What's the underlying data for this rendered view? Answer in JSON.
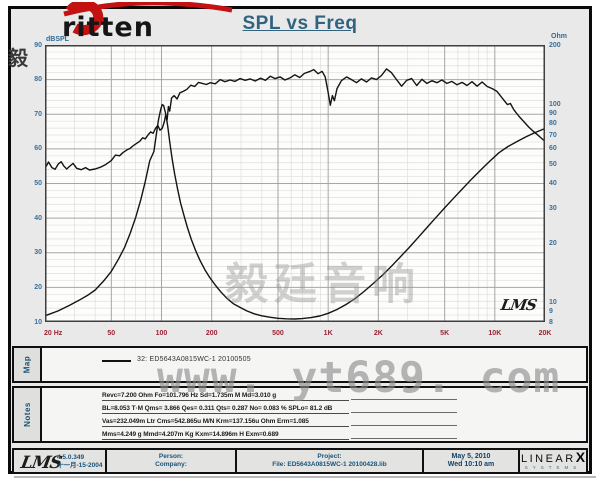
{
  "header": {
    "logo_text": "ritten",
    "stamp": "毅 廷 音 响",
    "title": "SPL vs Freq"
  },
  "colors": {
    "logo_red": "#c41111",
    "title_blue": "#31637f",
    "axis_teal": "#38709c",
    "axis_maroon": "#9b2235",
    "curve_black": "#141414",
    "watermark_gray": "#8c8c8c"
  },
  "chart_data": {
    "type": "line",
    "title": "SPL vs Freq",
    "grid": "on",
    "x_axis": {
      "scale": "log",
      "min": 20,
      "max": 20000,
      "ticks": [
        {
          "f": 20,
          "label": "20 Hz"
        },
        {
          "f": 50,
          "label": "50"
        },
        {
          "f": 100,
          "label": "100"
        },
        {
          "f": 200,
          "label": "200"
        },
        {
          "f": 500,
          "label": "500"
        },
        {
          "f": 1000,
          "label": "1K"
        },
        {
          "f": 2000,
          "label": "2K"
        },
        {
          "f": 5000,
          "label": "5K"
        },
        {
          "f": 10000,
          "label": "10K"
        },
        {
          "f": 20000,
          "label": "20K"
        }
      ],
      "minor": [
        30,
        40,
        60,
        70,
        80,
        90,
        300,
        400,
        600,
        700,
        800,
        900,
        3000,
        4000,
        6000,
        7000,
        8000,
        9000
      ],
      "major": [
        50,
        100,
        200,
        500,
        1000,
        2000,
        5000,
        10000
      ]
    },
    "y_left": {
      "label": "dBSPL",
      "scale": "linear",
      "min": 10,
      "max": 90,
      "ticks": [
        90,
        80,
        70,
        60,
        50,
        40,
        30,
        20,
        10
      ],
      "minor_step": 2
    },
    "y_right": {
      "label": "Ohm",
      "scale": "log",
      "min": 8,
      "max": 200,
      "ticks": [
        200,
        100,
        90,
        80,
        70,
        60,
        50,
        40,
        30,
        20,
        10,
        9,
        8
      ]
    },
    "watermark": "毅廷音响",
    "lms_signature": "LMS",
    "series": [
      {
        "name": "SPL (dB) - 32: ED5643A0815WC-1 20100505",
        "axis": "left",
        "points": [
          [
            20,
            54.3
          ],
          [
            21,
            56.2
          ],
          [
            22,
            54.6
          ],
          [
            23,
            54.1
          ],
          [
            24,
            55.6
          ],
          [
            25,
            56.3
          ],
          [
            26,
            55.0
          ],
          [
            27,
            54.2
          ],
          [
            28,
            54.9
          ],
          [
            29.5,
            55.8
          ],
          [
            31,
            54.4
          ],
          [
            33,
            54.0
          ],
          [
            35,
            54.6
          ],
          [
            37,
            53.9
          ],
          [
            40,
            54.2
          ],
          [
            43,
            54.7
          ],
          [
            46,
            55.4
          ],
          [
            50,
            56.6
          ],
          [
            53,
            58.2
          ],
          [
            56,
            58.0
          ],
          [
            59,
            59.0
          ],
          [
            62,
            59.7
          ],
          [
            65,
            60.2
          ],
          [
            68,
            61.0
          ],
          [
            71,
            61.6
          ],
          [
            74,
            62.2
          ],
          [
            77,
            63.2
          ],
          [
            80,
            62.9
          ],
          [
            83,
            64.0
          ],
          [
            86,
            64.9
          ],
          [
            89,
            64.5
          ],
          [
            92,
            65.9
          ],
          [
            95,
            66.8
          ],
          [
            98,
            65.4
          ],
          [
            101,
            65.9
          ],
          [
            104,
            67.8
          ],
          [
            106,
            69.8
          ],
          [
            108,
            68.3
          ],
          [
            110,
            72.2
          ],
          [
            112,
            70.9
          ],
          [
            115,
            74.7
          ],
          [
            119,
            75.4
          ],
          [
            124,
            74.4
          ],
          [
            129,
            76.2
          ],
          [
            135,
            76.6
          ],
          [
            142,
            77.2
          ],
          [
            150,
            78.4
          ],
          [
            158,
            78.0
          ],
          [
            167,
            79.2
          ],
          [
            176,
            78.9
          ],
          [
            186,
            78.6
          ],
          [
            196,
            79.1
          ],
          [
            210,
            78.8
          ],
          [
            225,
            80.0
          ],
          [
            240,
            79.4
          ],
          [
            258,
            79.9
          ],
          [
            276,
            79.5
          ],
          [
            296,
            80.3
          ],
          [
            318,
            79.8
          ],
          [
            340,
            80.2
          ],
          [
            365,
            79.6
          ],
          [
            392,
            80.4
          ],
          [
            420,
            79.8
          ],
          [
            450,
            81.0
          ],
          [
            480,
            80.3
          ],
          [
            515,
            80.8
          ],
          [
            550,
            79.9
          ],
          [
            590,
            80.5
          ],
          [
            630,
            81.4
          ],
          [
            675,
            80.6
          ],
          [
            720,
            81.8
          ],
          [
            770,
            82.3
          ],
          [
            820,
            82.9
          ],
          [
            870,
            81.7
          ],
          [
            920,
            82.4
          ],
          [
            960,
            80.8
          ],
          [
            1000,
            76.2
          ],
          [
            1030,
            72.6
          ],
          [
            1060,
            75.4
          ],
          [
            1090,
            73.9
          ],
          [
            1130,
            77.4
          ],
          [
            1200,
            79.7
          ],
          [
            1290,
            80.8
          ],
          [
            1380,
            80.0
          ],
          [
            1480,
            79.1
          ],
          [
            1580,
            80.2
          ],
          [
            1700,
            79.3
          ],
          [
            1820,
            80.5
          ],
          [
            1950,
            80.0
          ],
          [
            2090,
            81.2
          ],
          [
            2240,
            83.1
          ],
          [
            2400,
            82.0
          ],
          [
            2570,
            80.0
          ],
          [
            2760,
            78.1
          ],
          [
            2960,
            79.8
          ],
          [
            3170,
            80.3
          ],
          [
            3400,
            78.3
          ],
          [
            3650,
            80.1
          ],
          [
            3910,
            78.9
          ],
          [
            4190,
            79.7
          ],
          [
            4490,
            79.1
          ],
          [
            4810,
            79.9
          ],
          [
            5160,
            78.9
          ],
          [
            5530,
            79.5
          ],
          [
            5930,
            78.5
          ],
          [
            6360,
            79.2
          ],
          [
            6810,
            78.3
          ],
          [
            7300,
            79.4
          ],
          [
            7830,
            78.1
          ],
          [
            8390,
            79.3
          ],
          [
            9000,
            78.0
          ],
          [
            9640,
            77.4
          ],
          [
            10300,
            76.6
          ],
          [
            11100,
            74.6
          ],
          [
            11900,
            72.8
          ],
          [
            12400,
            73.1
          ],
          [
            13000,
            71.3
          ],
          [
            13900,
            69.5
          ],
          [
            14900,
            67.9
          ],
          [
            16000,
            66.3
          ],
          [
            17000,
            65.1
          ],
          [
            18000,
            64.1
          ],
          [
            19000,
            63.1
          ],
          [
            20000,
            62.2
          ]
        ]
      },
      {
        "name": "Impedance (Ohm)",
        "axis": "right",
        "points": [
          [
            20,
            8.6
          ],
          [
            24,
            9.1
          ],
          [
            28,
            9.7
          ],
          [
            32,
            10.3
          ],
          [
            36,
            10.9
          ],
          [
            40,
            11.6
          ],
          [
            45,
            12.9
          ],
          [
            50,
            14.4
          ],
          [
            55,
            16.5
          ],
          [
            60,
            19.0
          ],
          [
            65,
            22.5
          ],
          [
            70,
            27.0
          ],
          [
            75,
            33.0
          ],
          [
            80,
            41.0
          ],
          [
            85,
            52.0
          ],
          [
            90,
            58.0
          ],
          [
            93,
            70.0
          ],
          [
            96,
            84.0
          ],
          [
            99,
            95.0
          ],
          [
            101,
            100.0
          ],
          [
            103,
            99.0
          ],
          [
            106,
            90.0
          ],
          [
            109,
            78.0
          ],
          [
            112,
            65.0
          ],
          [
            116,
            53.0
          ],
          [
            120,
            44.5
          ],
          [
            125,
            37.5
          ],
          [
            130,
            32.0
          ],
          [
            136,
            27.8
          ],
          [
            143,
            24.0
          ],
          [
            151,
            20.9
          ],
          [
            160,
            18.4
          ],
          [
            170,
            16.4
          ],
          [
            182,
            14.7
          ],
          [
            195,
            13.4
          ],
          [
            210,
            12.3
          ],
          [
            228,
            11.3
          ],
          [
            248,
            10.5
          ],
          [
            270,
            9.9
          ],
          [
            295,
            9.5
          ],
          [
            325,
            9.1
          ],
          [
            360,
            8.8
          ],
          [
            400,
            8.6
          ],
          [
            450,
            8.45
          ],
          [
            500,
            8.35
          ],
          [
            560,
            8.3
          ],
          [
            630,
            8.28
          ],
          [
            700,
            8.32
          ],
          [
            790,
            8.42
          ],
          [
            890,
            8.58
          ],
          [
            1000,
            8.85
          ],
          [
            1130,
            9.25
          ],
          [
            1280,
            9.8
          ],
          [
            1450,
            10.5
          ],
          [
            1640,
            11.4
          ],
          [
            1860,
            12.5
          ],
          [
            2100,
            13.7
          ],
          [
            2380,
            15.2
          ],
          [
            2700,
            17.0
          ],
          [
            3060,
            19.0
          ],
          [
            3460,
            21.3
          ],
          [
            3920,
            24.0
          ],
          [
            4440,
            27.0
          ],
          [
            5030,
            30.3
          ],
          [
            5700,
            33.9
          ],
          [
            6450,
            37.9
          ],
          [
            7300,
            42.3
          ],
          [
            8270,
            47.0
          ],
          [
            9370,
            52.0
          ],
          [
            10600,
            57.2
          ],
          [
            12000,
            61.5
          ],
          [
            13600,
            65.2
          ],
          [
            15400,
            68.8
          ],
          [
            17400,
            72.3
          ],
          [
            20000,
            75.8
          ]
        ]
      }
    ]
  },
  "map": {
    "label": "Map",
    "legend": "32: ED5643A0815WC-1  20100505"
  },
  "watermark_text": "www. yt689. com",
  "notes": {
    "label": "Notes",
    "lines": [
      "Revc=7.200 Ohm  Fo=101.796 Hz  Sd=1.735m M  Md=3.010 g",
      "BL=8.053 T·M  Qms= 3.866  Qes= 0.311  Qts= 0.287  No= 0.083 %  SPLo= 81.2 dB",
      "Vas=232.049m Ltr  Cms=542.865u M/N  Krm=137.156u Ohm  Erm=1.085",
      "Mms=4.249 g  Mmd=4.207m Kg  Kxm=14.896m H  Exm=0.689"
    ]
  },
  "footer": {
    "lms_logo": "LMS",
    "version": "4.5.0.349",
    "version_date": "十一月-15-2004",
    "person_label": "Person:",
    "company_label": "Company:",
    "project_label": "Project:",
    "file_label": "File: ED5643A0815WC-1 20100428.lib",
    "date": "May 5, 2010",
    "time": "Wed 10:10 am",
    "brand_linear": "LINEAR",
    "brand_x": "X",
    "brand_systems": "SYSTEMS"
  }
}
